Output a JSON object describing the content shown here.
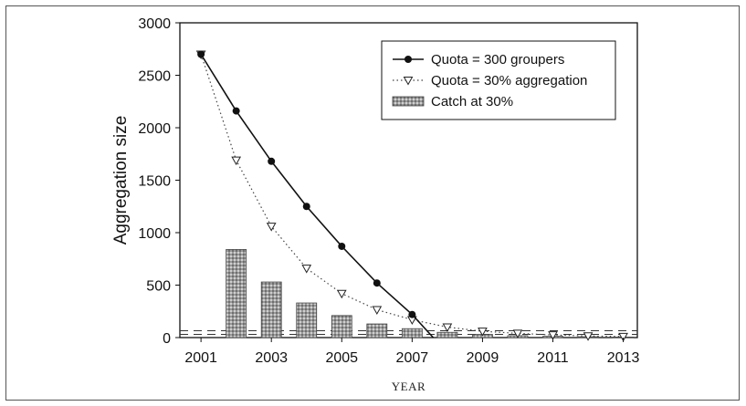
{
  "chart_data": {
    "type": "line",
    "xlabel": "YEAR",
    "ylabel": "Aggregation size",
    "xlim": [
      2001,
      2013
    ],
    "ylim": [
      0,
      3000
    ],
    "xticks": [
      2001,
      2003,
      2005,
      2007,
      2009,
      2011,
      2013
    ],
    "yticks": [
      0,
      500,
      1000,
      1500,
      2000,
      2500,
      3000
    ],
    "grid": false,
    "legend_position": "top-right",
    "reference_lines": [
      30,
      65
    ],
    "series": [
      {
        "name": "Quota = 300 groupers",
        "kind": "line",
        "marker": "filled-circle",
        "x": [
          2001,
          2002,
          2003,
          2004,
          2005,
          2006,
          2007,
          2007.6
        ],
        "values": [
          2700,
          2160,
          1680,
          1250,
          870,
          520,
          220,
          0
        ]
      },
      {
        "name": "Quota = 30% aggregation",
        "kind": "dotted-line",
        "marker": "open-triangle-down",
        "x": [
          2001,
          2002,
          2003,
          2004,
          2005,
          2006,
          2007,
          2008,
          2009,
          2010,
          2011,
          2012,
          2013
        ],
        "values": [
          2700,
          1690,
          1060,
          660,
          420,
          265,
          170,
          100,
          60,
          40,
          25,
          15,
          10
        ]
      },
      {
        "name": "Catch at 30%",
        "kind": "bar",
        "x": [
          2002,
          2003,
          2004,
          2005,
          2006,
          2007,
          2008,
          2009,
          2010,
          2011,
          2012,
          2013
        ],
        "values": [
          840,
          530,
          330,
          210,
          130,
          85,
          50,
          30,
          18,
          12,
          8,
          5
        ]
      }
    ]
  }
}
